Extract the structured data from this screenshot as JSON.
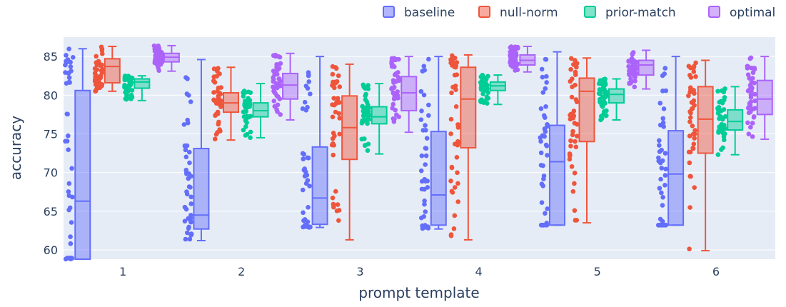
{
  "chart_data": {
    "type": "box",
    "xlabel": "prompt template",
    "ylabel": "accuracy",
    "categories": [
      "1",
      "2",
      "3",
      "4",
      "5",
      "6"
    ],
    "ylim": [
      58.8,
      87.5
    ],
    "yticks": [
      60,
      65,
      70,
      75,
      80,
      85
    ],
    "grid": true,
    "legend_position": "top-right",
    "points_shown": "all (jittered left of each box)",
    "series": [
      {
        "name": "baseline",
        "color": "#636efa",
        "boxes": [
          {
            "min": 58.8,
            "q1": 58.8,
            "median": 66.3,
            "q3": 80.6,
            "max": 86.0
          },
          {
            "min": 61.2,
            "q1": 62.7,
            "median": 64.5,
            "q3": 73.1,
            "max": 84.6
          },
          {
            "min": 62.9,
            "q1": 63.3,
            "median": 66.7,
            "q3": 73.3,
            "max": 85.0
          },
          {
            "min": 62.7,
            "q1": 63.2,
            "median": 67.1,
            "q3": 75.3,
            "max": 85.0
          },
          {
            "min": 63.2,
            "q1": 63.2,
            "median": 71.4,
            "q3": 76.1,
            "max": 85.6
          },
          {
            "min": 63.2,
            "q1": 63.2,
            "median": 69.8,
            "q3": 75.4,
            "max": 85.0
          }
        ]
      },
      {
        "name": "null-norm",
        "color": "#ef553b",
        "boxes": [
          {
            "min": 80.5,
            "q1": 81.6,
            "median": 83.7,
            "q3": 84.7,
            "max": 86.3
          },
          {
            "min": 74.2,
            "q1": 77.8,
            "median": 79.0,
            "q3": 80.3,
            "max": 83.6
          },
          {
            "min": 61.3,
            "q1": 71.7,
            "median": 75.8,
            "q3": 79.9,
            "max": 84.0
          },
          {
            "min": 61.3,
            "q1": 73.2,
            "median": 79.5,
            "q3": 83.6,
            "max": 85.2
          },
          {
            "min": 63.5,
            "q1": 74.0,
            "median": 80.5,
            "q3": 82.2,
            "max": 84.8
          },
          {
            "min": 59.9,
            "q1": 72.5,
            "median": 76.9,
            "q3": 81.1,
            "max": 84.5
          }
        ]
      },
      {
        "name": "prior-match",
        "color": "#00cc96",
        "boxes": [
          {
            "min": 79.3,
            "q1": 80.9,
            "median": 81.7,
            "q3": 82.1,
            "max": 82.5
          },
          {
            "min": 74.5,
            "q1": 77.2,
            "median": 78.0,
            "q3": 79.0,
            "max": 81.5
          },
          {
            "min": 72.4,
            "q1": 76.3,
            "median": 77.2,
            "q3": 78.5,
            "max": 81.5
          },
          {
            "min": 78.8,
            "q1": 80.6,
            "median": 81.2,
            "q3": 81.7,
            "max": 82.6
          },
          {
            "min": 76.8,
            "q1": 79.0,
            "median": 80.1,
            "q3": 80.8,
            "max": 82.1
          },
          {
            "min": 72.3,
            "q1": 75.5,
            "median": 76.6,
            "q3": 78.1,
            "max": 81.1
          }
        ]
      },
      {
        "name": "optimal",
        "color": "#ab63fa",
        "boxes": [
          {
            "min": 83.1,
            "q1": 84.3,
            "median": 84.9,
            "q3": 85.4,
            "max": 86.4
          },
          {
            "min": 76.8,
            "q1": 79.5,
            "median": 81.3,
            "q3": 82.8,
            "max": 85.4
          },
          {
            "min": 75.2,
            "q1": 78.0,
            "median": 80.3,
            "q3": 82.4,
            "max": 85.0
          },
          {
            "min": 83.0,
            "q1": 83.9,
            "median": 84.5,
            "q3": 85.2,
            "max": 86.3
          },
          {
            "min": 80.8,
            "q1": 82.6,
            "median": 83.9,
            "q3": 84.5,
            "max": 85.8
          },
          {
            "min": 74.3,
            "q1": 77.5,
            "median": 79.5,
            "q3": 81.9,
            "max": 85.0
          }
        ]
      }
    ]
  }
}
